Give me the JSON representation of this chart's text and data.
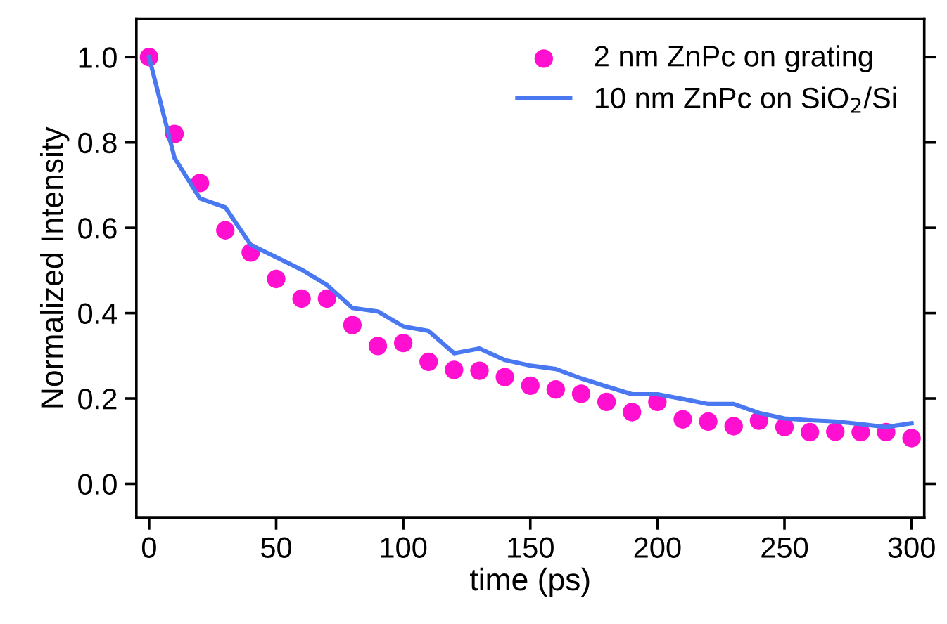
{
  "chart_data": {
    "type": "line",
    "xlabel": "time (ps)",
    "ylabel": "Normalized Intensity",
    "x": [
      0,
      10,
      20,
      30,
      40,
      50,
      60,
      70,
      80,
      90,
      100,
      110,
      120,
      130,
      140,
      150,
      160,
      170,
      180,
      190,
      200,
      210,
      220,
      230,
      240,
      250,
      260,
      270,
      280,
      290,
      300
    ],
    "series": [
      {
        "name": "2 nm ZnPc on grating",
        "type": "scatter",
        "marker": "circle",
        "color": "#ff10d0",
        "values": [
          1.0,
          0.82,
          0.705,
          0.594,
          0.542,
          0.48,
          0.434,
          0.434,
          0.372,
          0.323,
          0.33,
          0.286,
          0.267,
          0.265,
          0.25,
          0.23,
          0.221,
          0.211,
          0.192,
          0.168,
          0.192,
          0.151,
          0.146,
          0.135,
          0.148,
          0.133,
          0.121,
          0.122,
          0.121,
          0.121,
          0.107
        ]
      },
      {
        "name": "10 nm ZnPc on SiO$_{2}$/Si",
        "color": "#4a78f0",
        "line_style": "solid",
        "values": [
          1.0,
          0.764,
          0.669,
          0.648,
          0.56,
          0.531,
          0.502,
          0.466,
          0.412,
          0.404,
          0.369,
          0.358,
          0.306,
          0.317,
          0.29,
          0.277,
          0.269,
          0.247,
          0.228,
          0.21,
          0.21,
          0.199,
          0.187,
          0.187,
          0.166,
          0.153,
          0.149,
          0.146,
          0.14,
          0.133,
          0.142
        ]
      }
    ],
    "xlim": [
      -5,
      305
    ],
    "ylim": [
      -0.08,
      1.09
    ],
    "xticks": [
      0,
      50,
      100,
      150,
      200,
      250,
      300
    ],
    "yticks": [
      {
        "value": 0,
        "label": "0.0"
      },
      {
        "value": 0.2,
        "label": "0.2"
      },
      {
        "value": 0.4,
        "label": "0.4"
      },
      {
        "value": 0.6,
        "label": "0.6"
      },
      {
        "value": 0.8,
        "label": "0.8"
      },
      {
        "value": 1.0,
        "label": "1.0"
      }
    ],
    "grid": false,
    "legend": "top right"
  }
}
